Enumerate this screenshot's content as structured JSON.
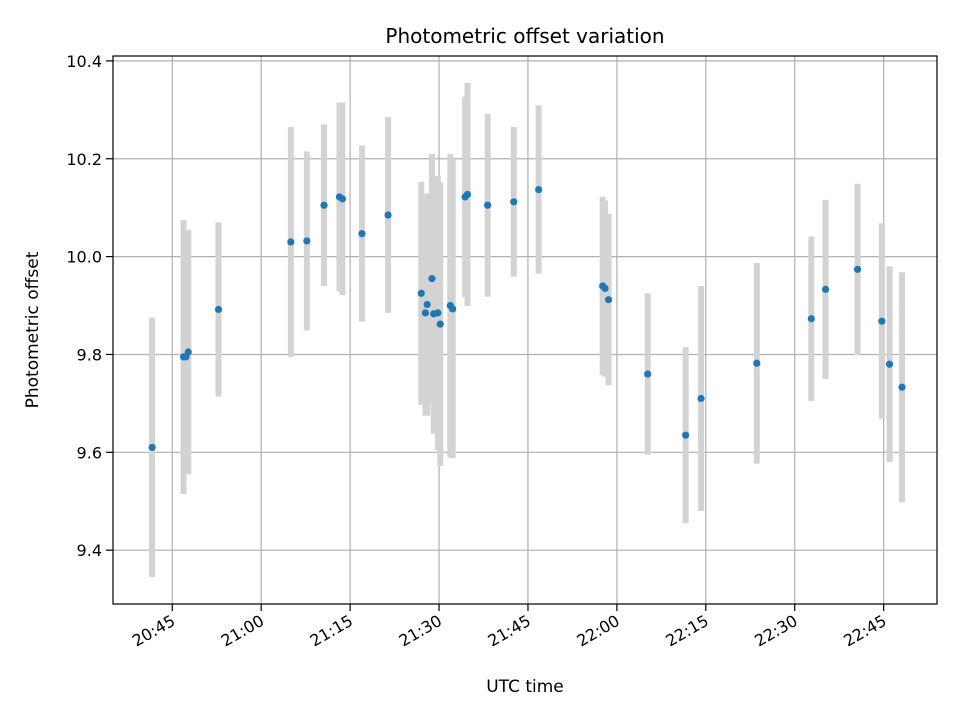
{
  "chart_data": {
    "type": "scatter",
    "title": "Photometric offset variation",
    "xlabel": "UTC time",
    "ylabel": "Photometric offset",
    "xlim": [
      "20:35",
      "22:54"
    ],
    "ylim": [
      9.29,
      10.41
    ],
    "x_ticks": [
      "20:45",
      "21:00",
      "21:15",
      "21:30",
      "21:45",
      "22:00",
      "22:15",
      "22:30",
      "22:45"
    ],
    "y_ticks": [
      9.4,
      9.6,
      9.8,
      10.0,
      10.2,
      10.4
    ],
    "y_tick_labels": [
      "9.4",
      "9.6",
      "9.8",
      "10.0",
      "10.2",
      "10.4"
    ],
    "grid": true,
    "colors": {
      "point": "#1f77b4",
      "errorbar": "#d3d3d3",
      "grid": "#b0b0b0"
    },
    "series": [
      {
        "points": [
          {
            "x": "20:41:36",
            "y": 9.61,
            "err": 0.265
          },
          {
            "x": "20:46:54",
            "y": 9.795,
            "err": 0.28
          },
          {
            "x": "20:47:18",
            "y": 9.795,
            "err": 0.225
          },
          {
            "x": "20:47:42",
            "y": 9.805,
            "err": 0.25
          },
          {
            "x": "20:52:48",
            "y": 9.892,
            "err": 0.178
          },
          {
            "x": "21:05:00",
            "y": 10.03,
            "err": 0.235
          },
          {
            "x": "21:07:42",
            "y": 10.032,
            "err": 0.183
          },
          {
            "x": "21:10:36",
            "y": 10.105,
            "err": 0.165
          },
          {
            "x": "21:13:12",
            "y": 10.122,
            "err": 0.193
          },
          {
            "x": "21:13:42",
            "y": 10.118,
            "err": 0.197
          },
          {
            "x": "21:17:00",
            "y": 10.047,
            "err": 0.18
          },
          {
            "x": "21:21:24",
            "y": 10.085,
            "err": 0.2
          },
          {
            "x": "21:27:00",
            "y": 9.925,
            "err": 0.228
          },
          {
            "x": "21:27:42",
            "y": 9.885,
            "err": 0.21
          },
          {
            "x": "21:28:00",
            "y": 9.902,
            "err": 0.227
          },
          {
            "x": "21:28:48",
            "y": 9.955,
            "err": 0.255
          },
          {
            "x": "21:29:06",
            "y": 9.883,
            "err": 0.245
          },
          {
            "x": "21:29:48",
            "y": 9.885,
            "err": 0.28
          },
          {
            "x": "21:30:12",
            "y": 9.862,
            "err": 0.29
          },
          {
            "x": "21:31:54",
            "y": 9.9,
            "err": 0.31
          },
          {
            "x": "21:32:18",
            "y": 9.893,
            "err": 0.305
          },
          {
            "x": "21:34:24",
            "y": 10.122,
            "err": 0.205
          },
          {
            "x": "21:34:48",
            "y": 10.127,
            "err": 0.228
          },
          {
            "x": "21:38:12",
            "y": 10.105,
            "err": 0.187
          },
          {
            "x": "21:42:36",
            "y": 10.112,
            "err": 0.153
          },
          {
            "x": "21:46:48",
            "y": 10.137,
            "err": 0.172
          },
          {
            "x": "21:57:36",
            "y": 9.94,
            "err": 0.182
          },
          {
            "x": "21:58:00",
            "y": 9.935,
            "err": 0.18
          },
          {
            "x": "21:58:36",
            "y": 9.912,
            "err": 0.175
          },
          {
            "x": "22:05:12",
            "y": 9.76,
            "err": 0.165
          },
          {
            "x": "22:11:36",
            "y": 9.635,
            "err": 0.18
          },
          {
            "x": "22:14:12",
            "y": 9.71,
            "err": 0.23
          },
          {
            "x": "22:23:36",
            "y": 9.782,
            "err": 0.205
          },
          {
            "x": "22:32:48",
            "y": 9.873,
            "err": 0.168
          },
          {
            "x": "22:35:12",
            "y": 9.933,
            "err": 0.183
          },
          {
            "x": "22:40:36",
            "y": 9.974,
            "err": 0.175
          },
          {
            "x": "22:44:42",
            "y": 9.868,
            "err": 0.2
          },
          {
            "x": "22:46:00",
            "y": 9.78,
            "err": 0.2
          },
          {
            "x": "22:48:06",
            "y": 9.733,
            "err": 0.235
          }
        ]
      }
    ]
  }
}
